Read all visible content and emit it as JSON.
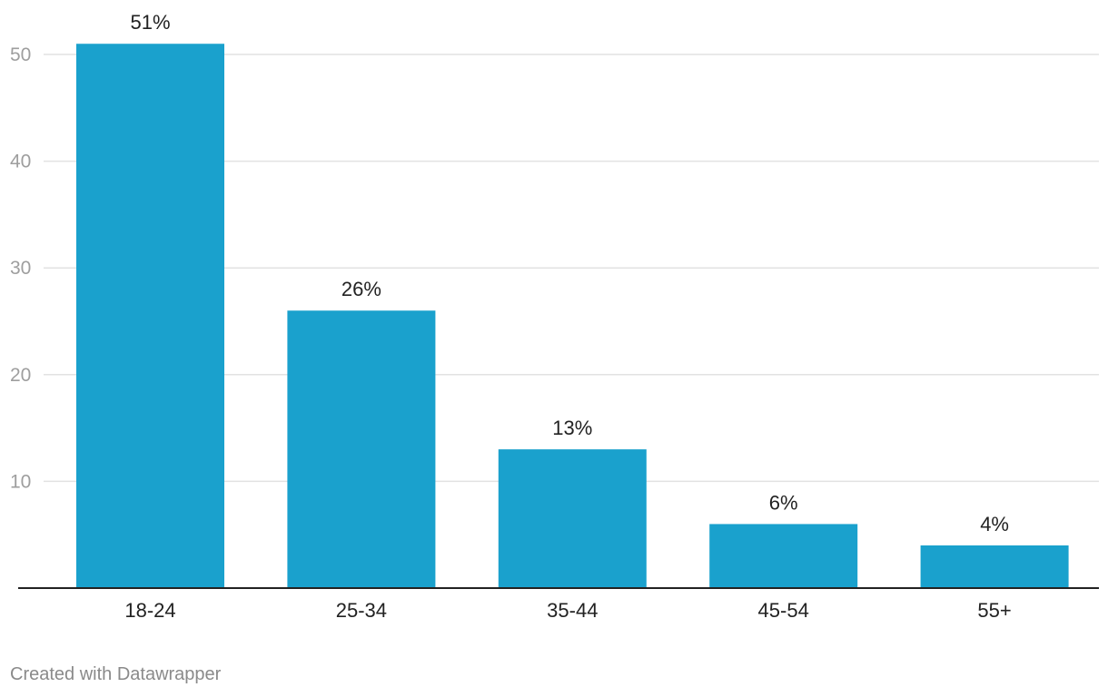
{
  "chart_data": {
    "type": "bar",
    "categories": [
      "18-24",
      "25-34",
      "35-44",
      "45-54",
      "55+"
    ],
    "values": [
      51,
      26,
      13,
      6,
      4
    ],
    "value_labels": [
      "51%",
      "26%",
      "13%",
      "6%",
      "4%"
    ],
    "title": "",
    "xlabel": "",
    "ylabel": "",
    "ylim": [
      0,
      50
    ],
    "yticks": [
      10,
      20,
      30,
      40,
      50
    ],
    "grid": true,
    "legend": "none",
    "bar_color": "#1aa1cd"
  },
  "footer": {
    "credit": "Created with Datawrapper"
  },
  "colors": {
    "axis_tick_label": "#9e9e9e",
    "grid_line": "#e2e2e2",
    "baseline": "#222222",
    "value_label": "#222222",
    "category_label": "#222222",
    "credit": "#8a8a8a"
  }
}
